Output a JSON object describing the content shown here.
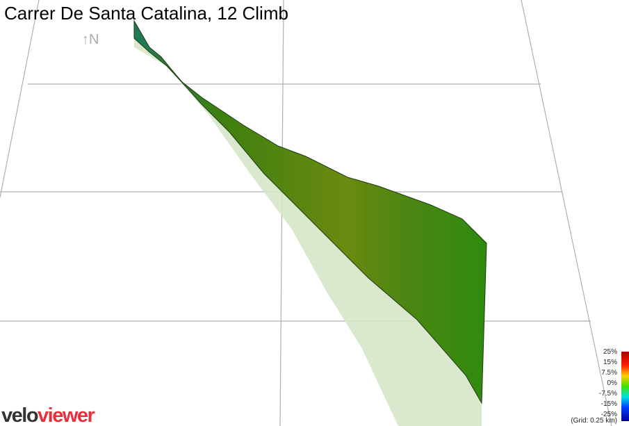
{
  "title": "Carrer De Santa Catalina, 12 Climb",
  "north": "↑N",
  "legend": {
    "labels": [
      "25%",
      "15%",
      "7.5%",
      "0%",
      "-7.5%",
      "-15%",
      "-25%"
    ],
    "grid_note": "(Grid: 0.25 km)"
  },
  "logo": {
    "part1": "velo",
    "part2": "viewer"
  }
}
